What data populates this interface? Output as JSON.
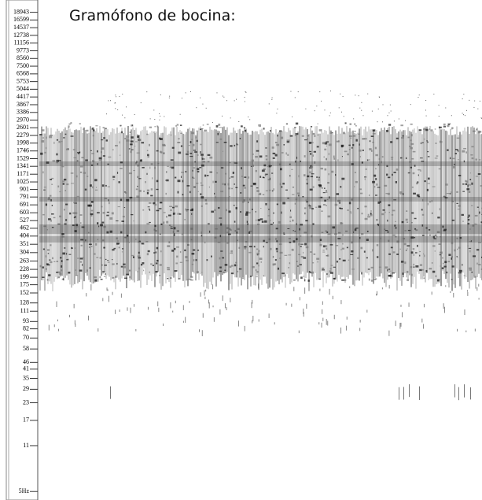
{
  "chart_data": {
    "type": "spectrogram",
    "title": "Gramófono de bocina:",
    "log_scale": true,
    "ylim": [
      4.5,
      21000
    ],
    "yticks": [
      18943,
      16599,
      14537,
      12738,
      11156,
      9773,
      8560,
      7500,
      6568,
      5753,
      5044,
      4417,
      3867,
      3386,
      2970,
      2601,
      2279,
      1998,
      1746,
      1529,
      1341,
      1171,
      1025,
      901,
      791,
      691,
      603,
      527,
      462,
      404,
      351,
      304,
      263,
      228,
      199,
      175,
      152,
      128,
      111,
      93,
      82,
      70,
      58,
      46,
      41,
      35,
      29,
      23,
      17,
      11,
      {
        "value": 5,
        "label": "5Hz"
      }
    ]
  }
}
